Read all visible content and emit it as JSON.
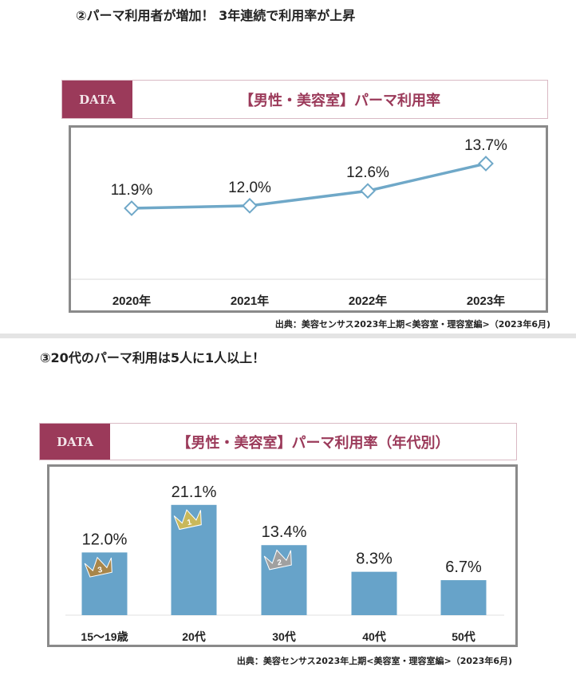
{
  "section1": {
    "title": "②パーマ利用者が増加！ 3年連続で利用率が上昇",
    "data_tag": "DATA",
    "chart_title": "【男性・美容室】パーマ利用率",
    "source": "出典：美容センサス2023年上期<美容室・理容室編>（2023年6月)"
  },
  "section2": {
    "title": "③20代のパーマ利用は5人に1人以上！",
    "data_tag": "DATA",
    "chart_title": "【男性・美容室】パーマ利用率（年代別）",
    "source": "出典：美容センサス2023年上期<美容室・理容室編>（2023年6月)"
  },
  "chart_data": [
    {
      "type": "line",
      "title": "【男性・美容室】パーマ利用率",
      "categories": [
        "2020年",
        "2021年",
        "2022年",
        "2023年"
      ],
      "values": [
        11.9,
        12.0,
        12.6,
        13.7
      ],
      "labels": [
        "11.9%",
        "12.0%",
        "12.6%",
        "13.7%"
      ],
      "color": "#6fa8c8"
    },
    {
      "type": "bar",
      "title": "【男性・美容室】パーマ利用率（年代別）",
      "categories": [
        "15～19歳",
        "20代",
        "30代",
        "40代",
        "50代"
      ],
      "values": [
        12.0,
        21.1,
        13.4,
        8.3,
        6.7
      ],
      "labels": [
        "12.0%",
        "21.1%",
        "13.4%",
        "8.3%",
        "6.7%"
      ],
      "ranks": [
        "3",
        "1",
        "2",
        "",
        ""
      ],
      "color": "#67a3c9",
      "ylim": [
        0,
        21.1
      ]
    }
  ],
  "colors": {
    "accent": "#9b3a5a",
    "gold": "#c9b85a",
    "silver": "#a0a0a0",
    "bronze": "#a8864a"
  }
}
